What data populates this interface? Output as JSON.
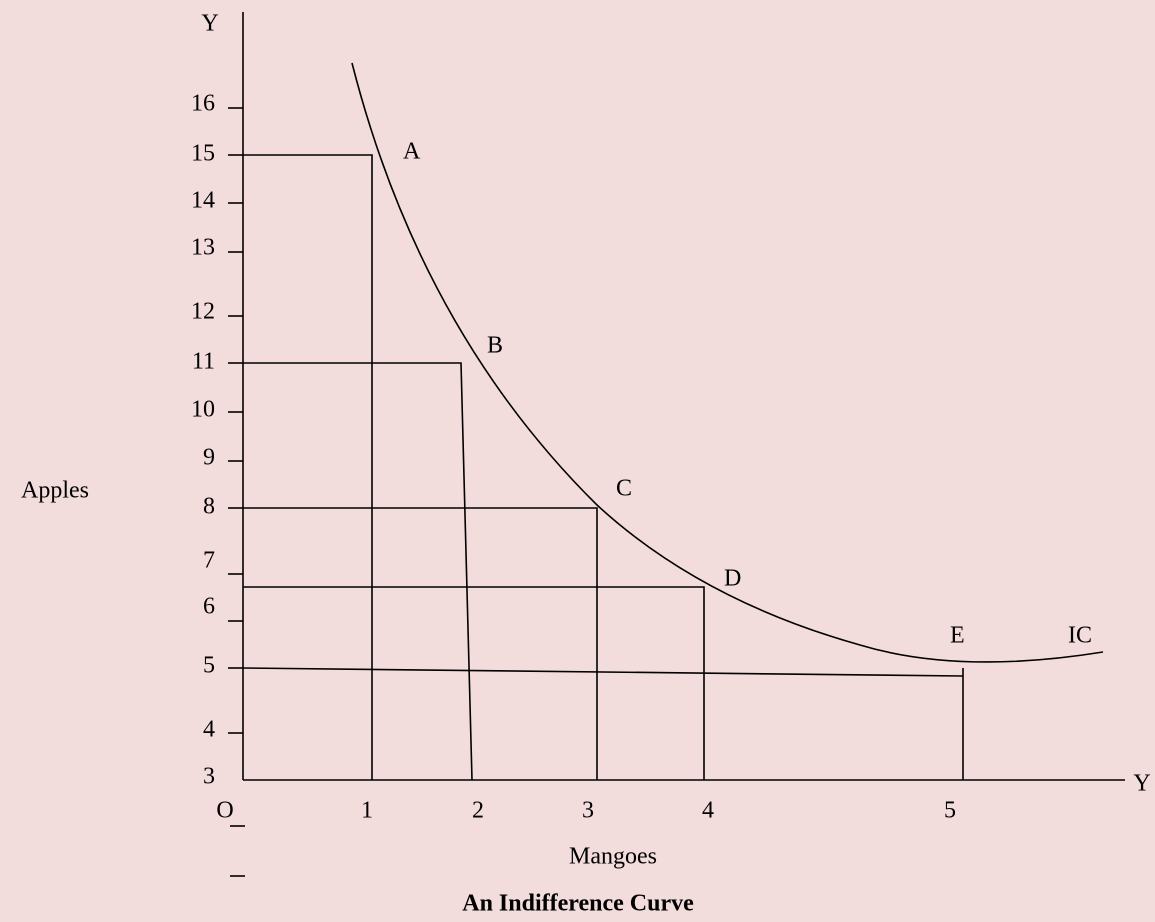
{
  "axes": {
    "y_axis_letter": "Y",
    "x_axis_letter": "Y",
    "origin": "O",
    "y_title": "Apples",
    "x_title": "Mangoes"
  },
  "y_ticks": [
    "16",
    "15",
    "14",
    "13",
    "12",
    "11",
    "10",
    "9",
    "8",
    "7",
    "6",
    "5",
    "4",
    "3"
  ],
  "x_ticks": [
    "1",
    "2",
    "3",
    "4",
    "5"
  ],
  "points": [
    "A",
    "B",
    "C",
    "D",
    "E"
  ],
  "curve_label": "IC",
  "caption": "An Indifference Curve"
}
